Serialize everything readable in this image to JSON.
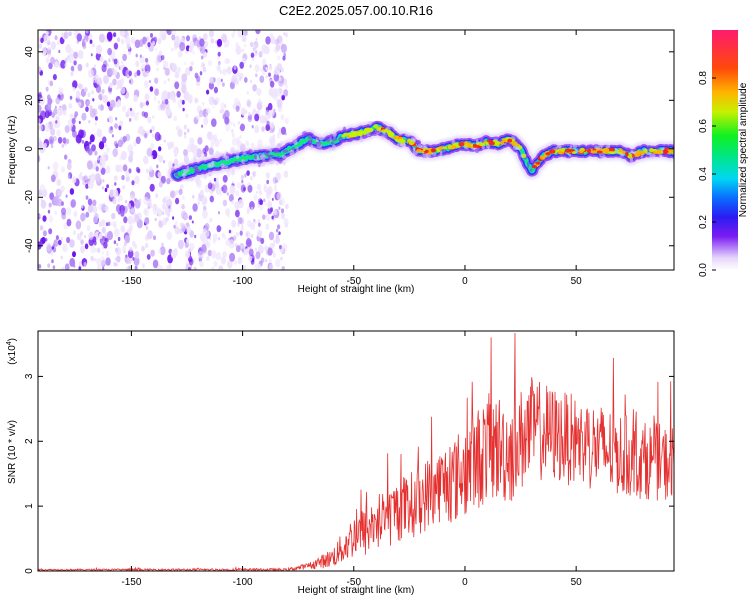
{
  "title": "C2E2.2025.057.00.10.R16",
  "chart_data": [
    {
      "type": "heatmap",
      "title": "C2E2.2025.057.00.10.R16",
      "xlabel": "Height of straight line (km)",
      "ylabel": "Frequency (Hz)",
      "xlim": [
        -192,
        94
      ],
      "ylim": [
        -50,
        49
      ],
      "xticks": [
        -150,
        -100,
        -50,
        0,
        50
      ],
      "yticks": [
        -40,
        -20,
        0,
        20,
        40
      ],
      "grid": false,
      "noise_region_x": [
        -192,
        -80
      ],
      "ridge": {
        "x": [
          -130,
          -120,
          -110,
          -100,
          -90,
          -82,
          -75,
          -70,
          -65,
          -60,
          -55,
          -50,
          -45,
          -40,
          -35,
          -30,
          -25,
          -20,
          -15,
          -10,
          -5,
          0,
          5,
          10,
          15,
          20,
          25,
          28,
          30,
          35,
          40,
          50,
          60,
          70,
          75,
          80,
          94
        ],
        "y": [
          -11,
          -8,
          -6,
          -4,
          -3,
          -2,
          2,
          4,
          2,
          3,
          5,
          6,
          7,
          9,
          7,
          4,
          3,
          -1,
          -1,
          0,
          1,
          2,
          1,
          3,
          2,
          4,
          0,
          -6,
          -9,
          -3,
          -1,
          -1,
          -1,
          -1,
          -3,
          -1,
          -1
        ]
      },
      "colorbar": {
        "label": "Normalized spectral amplitude",
        "ticks": [
          0.0,
          0.2,
          0.4,
          0.6,
          0.8
        ],
        "range": [
          0,
          1
        ]
      }
    },
    {
      "type": "line",
      "xlabel": "Height of straight line (km)",
      "ylabel": "SNR (10 * v/v)",
      "ylabel_multiplier": "(x10",
      "ylabel_multiplier_exp": "4",
      "ylabel_multiplier_close": ")",
      "xlim": [
        -192,
        94
      ],
      "ylim": [
        0,
        3.7
      ],
      "xticks": [
        -150,
        -100,
        -50,
        0,
        50
      ],
      "yticks": [
        0,
        1,
        2,
        3
      ],
      "grid": false,
      "color": "#e53030",
      "envelope": {
        "x": [
          -192,
          -80,
          -75,
          -70,
          -60,
          -55,
          -50,
          -45,
          -40,
          -35,
          -30,
          -25,
          -20,
          -15,
          -10,
          -5,
          0,
          5,
          10,
          15,
          20,
          25,
          30,
          35,
          40,
          45,
          50,
          55,
          60,
          65,
          70,
          75,
          80,
          85,
          90,
          94
        ],
        "y": [
          0.02,
          0.02,
          0.05,
          0.08,
          0.2,
          0.35,
          0.55,
          0.6,
          0.75,
          0.8,
          0.95,
          1.0,
          1.1,
          1.25,
          1.35,
          1.4,
          1.55,
          1.7,
          1.9,
          1.9,
          1.85,
          2.0,
          2.2,
          2.15,
          2.1,
          2.05,
          2.0,
          1.95,
          1.9,
          1.85,
          1.8,
          1.75,
          1.7,
          1.7,
          1.65,
          1.7
        ]
      },
      "fluctuation": {
        "x": [
          -192,
          -80,
          -70,
          -60,
          -50,
          -40,
          -30,
          -20,
          -10,
          0,
          10,
          20,
          30,
          40,
          50,
          60,
          70,
          80,
          94
        ],
        "y": [
          0.01,
          0.02,
          0.05,
          0.15,
          0.35,
          0.45,
          0.5,
          0.55,
          0.6,
          0.75,
          0.85,
          0.85,
          0.8,
          0.75,
          0.7,
          0.7,
          0.65,
          0.6,
          0.6
        ]
      }
    }
  ]
}
